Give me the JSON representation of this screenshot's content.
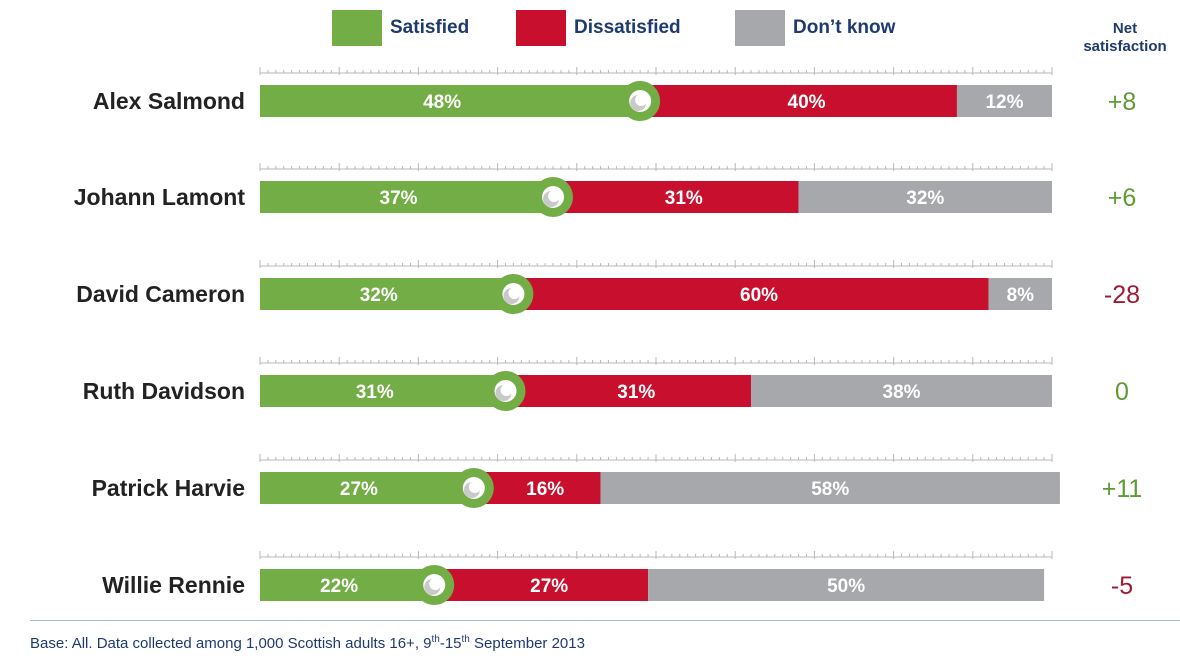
{
  "legend": {
    "satisfied": "Satisfied",
    "dissatisfied": "Dissatisfied",
    "dont_know": "Don’t know"
  },
  "net_header": {
    "line1": "Net",
    "line2": "satisfaction"
  },
  "colors": {
    "satisfied": "#72ad45",
    "dissatisfied": "#c8102e",
    "dont_know": "#a6a8ab",
    "net_positive": "#5f9a33",
    "net_negative": "#9e1b32",
    "names": "#222222",
    "tick": "#b8b8b8"
  },
  "chart_data": {
    "type": "bar",
    "orientation": "horizontal",
    "stacked": true,
    "percent_scale": [
      0,
      100
    ],
    "categories": [
      "Alex Salmond",
      "Johann Lamont",
      "David Cameron",
      "Ruth Davidson",
      "Patrick Harvie",
      "Willie Rennie"
    ],
    "series": [
      {
        "name": "Satisfied",
        "values": [
          48,
          37,
          32,
          31,
          27,
          22
        ]
      },
      {
        "name": "Dissatisfied",
        "values": [
          40,
          31,
          60,
          31,
          16,
          27
        ]
      },
      {
        "name": "Don’t know",
        "values": [
          12,
          32,
          8,
          38,
          58,
          50
        ]
      }
    ],
    "net_satisfaction": [
      "+8",
      "+6",
      "-28",
      "0",
      "+11",
      "-5"
    ],
    "net_sign": [
      "positive",
      "positive",
      "negative",
      "positive",
      "positive",
      "negative"
    ],
    "value_suffix": "%"
  },
  "footnote": {
    "text_a": "Base: All. Data collected among 1,000 Scottish adults 16+, 9",
    "sup_a": "th",
    "text_b": "-15",
    "sup_b": "th",
    "text_c": " September 2013"
  }
}
